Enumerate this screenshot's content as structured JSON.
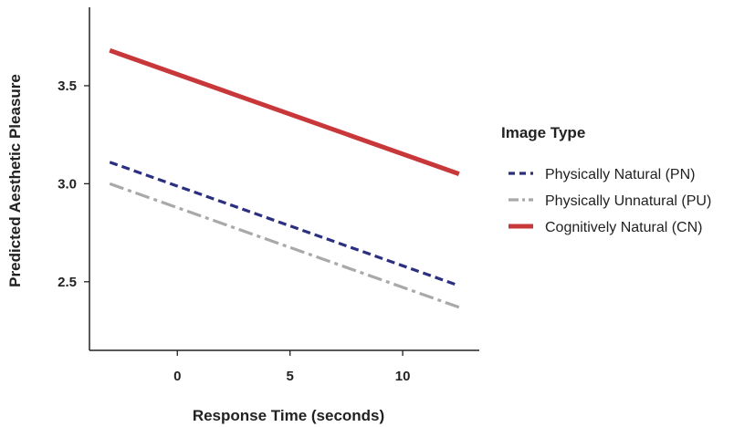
{
  "chart_data": {
    "type": "line",
    "title": "",
    "xlabel": "Response Time (seconds)",
    "ylabel": "Predicted Aesthetic Pleasure",
    "xlim": [
      -3.9,
      13.4
    ],
    "ylim": [
      2.15,
      3.9
    ],
    "xticks": [
      0,
      5,
      10
    ],
    "yticks": [
      2.5,
      3.0,
      3.5
    ],
    "xtick_labels": [
      "0",
      "5",
      "10"
    ],
    "ytick_labels": [
      "2.5",
      "3.0",
      "3.5"
    ],
    "grid": false,
    "legend": {
      "title": "Image Type",
      "placement": "right"
    },
    "series": [
      {
        "name": "Physically Natural (PN)",
        "color": "#2b2f7f",
        "style": "dashed",
        "x": [
          -3,
          12.5
        ],
        "y": [
          3.11,
          2.48
        ]
      },
      {
        "name": "Physically Unnatural (PU)",
        "color": "#a9a9a9",
        "style": "dashdot",
        "x": [
          -3,
          12.5
        ],
        "y": [
          3.0,
          2.37
        ]
      },
      {
        "name": "Cognitively Natural (CN)",
        "color": "#c8373a",
        "style": "solid",
        "x": [
          -3,
          12.5
        ],
        "y": [
          3.68,
          3.05
        ]
      }
    ]
  }
}
